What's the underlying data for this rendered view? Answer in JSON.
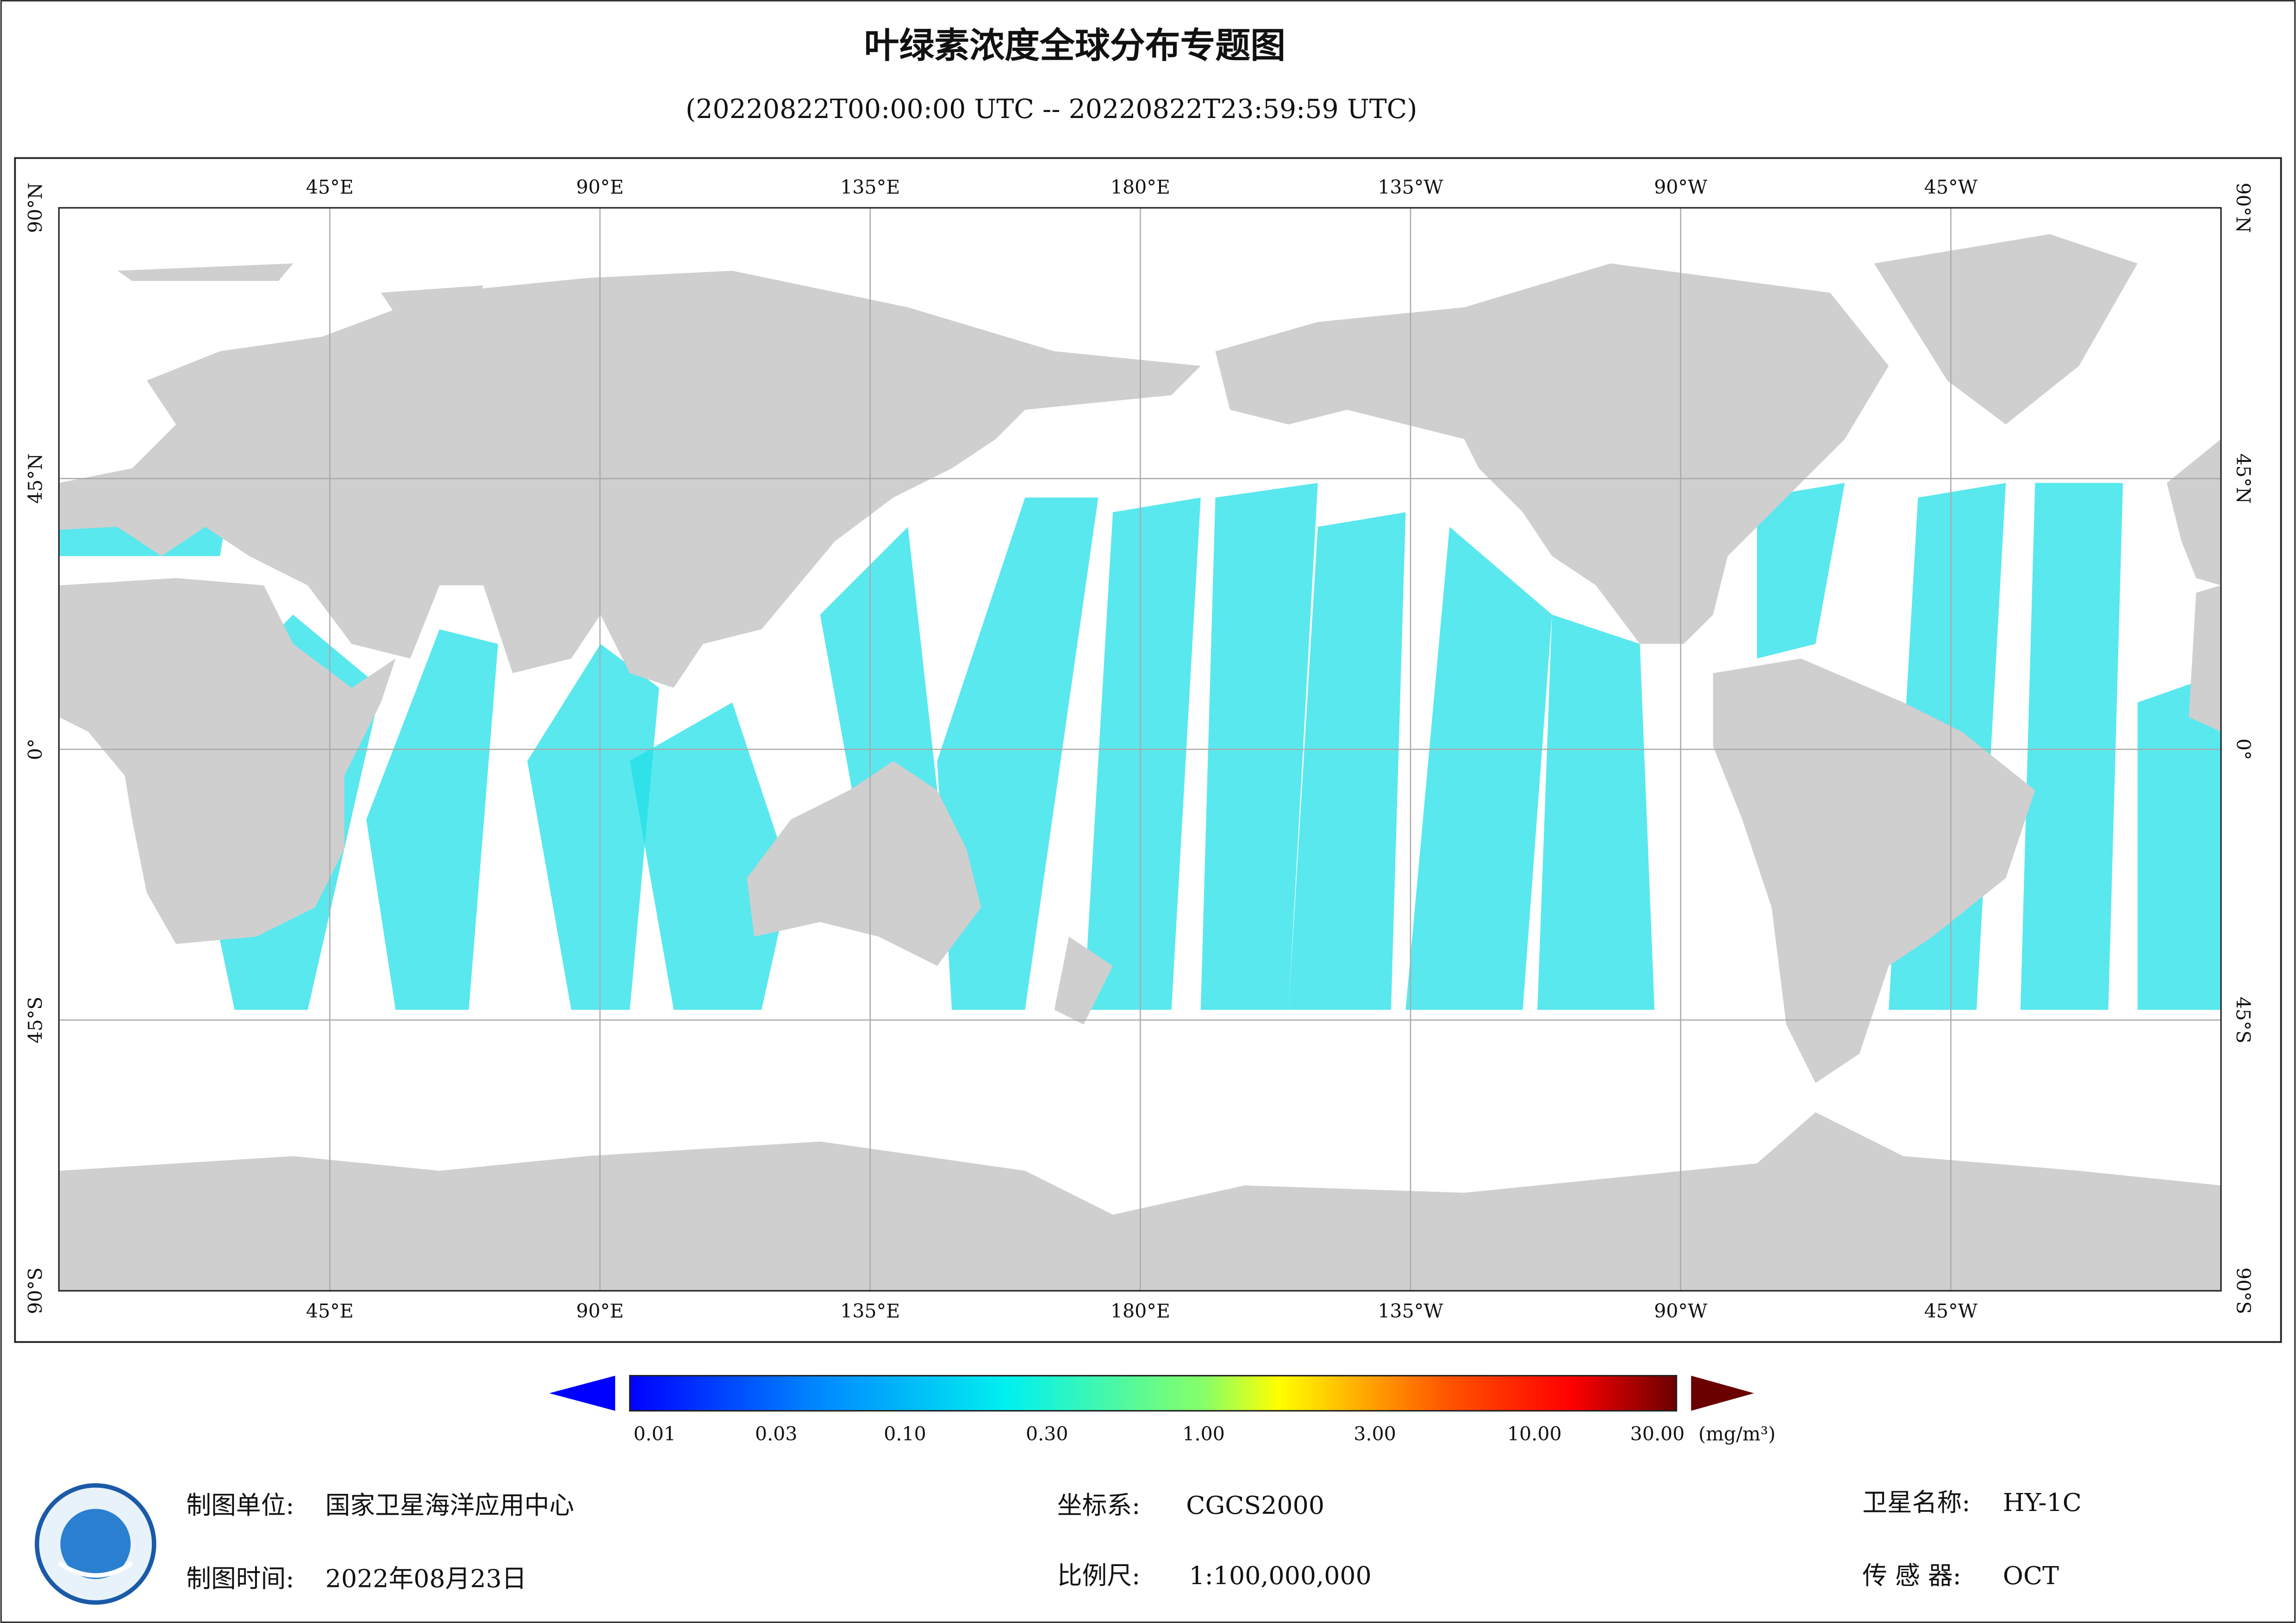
{
  "header": {
    "title": "叶绿素浓度全球分布专题图",
    "subtitle": "(20220822T00:00:00 UTC -- 20220822T23:59:59 UTC)"
  },
  "map": {
    "lon_labels": [
      "45°E",
      "90°E",
      "135°E",
      "180°E",
      "135°W",
      "90°W",
      "45°W"
    ],
    "lat_labels": [
      "90°N",
      "45°N",
      "0°",
      "45°S",
      "90°S"
    ]
  },
  "colorbar": {
    "ticks": [
      "0.01",
      "0.03",
      "0.10",
      "0.30",
      "1.00",
      "3.00",
      "10.00",
      "30.00"
    ],
    "unit": "(mg/m³)"
  },
  "footer": {
    "unit_label": "制图单位:",
    "unit": "国家卫星海洋应用中心",
    "date_label": "制图时间:",
    "date": "2022年08月23日",
    "crs_label": "坐标系:",
    "crs": "CGCS2000",
    "scale_label": "比例尺:",
    "scale": "1:100,000,000",
    "satellite_label": "卫星名称:",
    "satellite": "HY-1C",
    "sensor_label": "传 感 器:",
    "sensor": "OCT"
  }
}
